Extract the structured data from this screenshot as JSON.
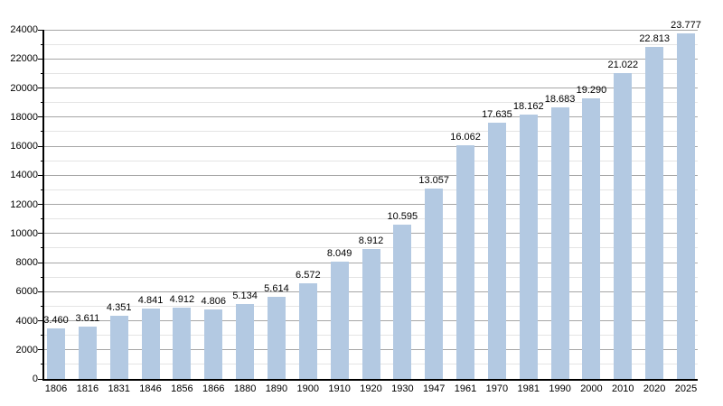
{
  "chart_data": {
    "type": "bar",
    "title": "",
    "xlabel": "",
    "ylabel": "",
    "categories": [
      "1806",
      "1816",
      "1831",
      "1846",
      "1856",
      "1866",
      "1880",
      "1890",
      "1900",
      "1910",
      "1920",
      "1930",
      "1947",
      "1961",
      "1970",
      "1981",
      "1990",
      "2000",
      "2010",
      "2020",
      "2025"
    ],
    "values": [
      3460,
      3611,
      4351,
      4841,
      4912,
      4806,
      5134,
      5614,
      6572,
      8049,
      8912,
      10595,
      13057,
      16062,
      17635,
      18162,
      18683,
      19290,
      21022,
      22813,
      23777
    ],
    "value_labels": [
      "3.460",
      "3.611",
      "4.351",
      "4.841",
      "4.912",
      "4.806",
      "5.134",
      "5.614",
      "6.572",
      "8.049",
      "8.912",
      "10.595",
      "13.057",
      "16.062",
      "17.635",
      "18.162",
      "18.683",
      "19.290",
      "21.022",
      "22.813",
      "23.777"
    ],
    "ylim": [
      0,
      24000
    ],
    "y_major_step": 2000,
    "y_minor_step": 1000,
    "y_tick_labels": [
      "0",
      "2000",
      "4000",
      "6000",
      "8000",
      "10000",
      "12000",
      "14000",
      "16000",
      "18000",
      "20000",
      "22000",
      "24000"
    ],
    "grid": "major-and-minor horizontal",
    "legend": "none",
    "colors": {
      "bar": "#B3C9E2",
      "grid_major": "#A6A6A6",
      "grid_minor": "#E4E4E4",
      "axis": "#000000",
      "text": "#000000",
      "background": "#FFFFFF"
    }
  }
}
